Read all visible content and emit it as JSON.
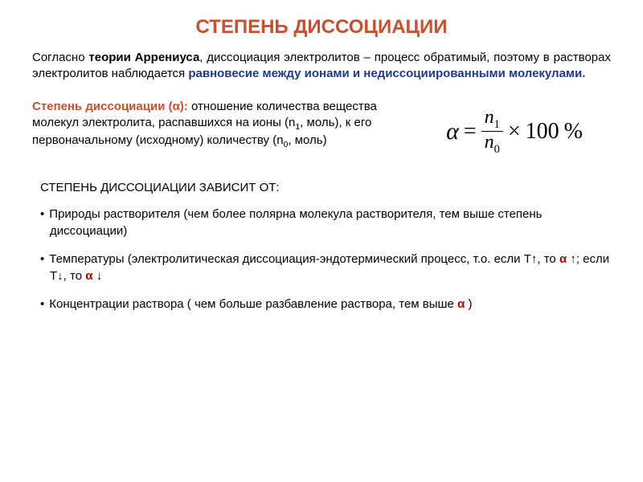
{
  "colors": {
    "title": "#c94f2e",
    "theory": "#000000",
    "equilibrium": "#1e3a8a",
    "def_label": "#c94f2e",
    "alpha_red": "#c00000",
    "text": "#000000"
  },
  "title": "СТЕПЕНЬ ДИССОЦИАЦИИ",
  "intro": {
    "p1": "Согласно ",
    "theory": "теории Аррениуса",
    "p2": ", диссоциация электролитов – процесс обратимый, поэтому в растворах электролитов наблюдается ",
    "equilibrium": "равновесие между ионами и недиссоциированными молекулами."
  },
  "definition": {
    "label": "Степень диссоциации (α):",
    "text1": " отношение количества вещества молекул электролита, распавшихся на ионы (n",
    "sub1": "1",
    "text2": ", моль), к его первоначальному (исходному) количеству (n",
    "sub0": "0",
    "text3": ", моль)"
  },
  "formula": {
    "alpha": "α",
    "eq": "=",
    "num_n": "n",
    "num_sub": "1",
    "den_n": "n",
    "den_sub": "0",
    "times": "×",
    "hundred": "100",
    "pct": "%"
  },
  "depends": {
    "title": "СТЕПЕНЬ ДИССОЦИАЦИИ ЗАВИСИТ ОТ:",
    "item1": "Природы растворителя (чем более полярна молекула растворителя, тем выше степень диссоциации)",
    "item2_a": "Температуры (электролитическая диссоциация-эндотермический процесс, т.о. если T↑, то ",
    "item2_alpha1": "α",
    "item2_b": " ↑; если T↓, то ",
    "item2_alpha2": "α",
    "item2_c": " ↓",
    "item3_a": "Концентрации раствора ( чем больше разбавление раствора, тем выше ",
    "item3_alpha": "α",
    "item3_b": " )"
  }
}
